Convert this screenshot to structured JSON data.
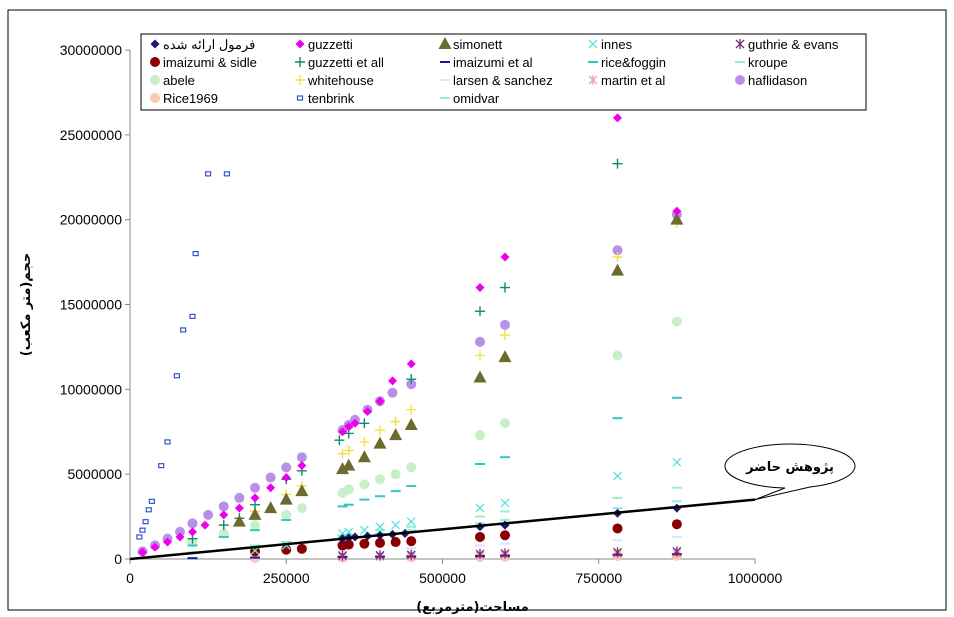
{
  "chart_data": {
    "type": "scatter",
    "title": "",
    "xlabel": "مساحت(مترمربع)",
    "ylabel": "حجم(متر مکعب)",
    "xlim": [
      0,
      1000000
    ],
    "ylim": [
      0,
      30000000
    ],
    "x_ticks": [
      "0",
      "250000",
      "500000",
      "750000",
      "1000000"
    ],
    "y_ticks": [
      "0",
      "5000000",
      "10000000",
      "15000000",
      "20000000",
      "25000000",
      "30000000"
    ],
    "grid": false,
    "legend_position": "top",
    "trend_line": {
      "name": "فرمول ارائه شده",
      "x": [
        0,
        1000000
      ],
      "y": [
        0,
        3500000
      ],
      "color": "#000000"
    },
    "callout": {
      "text": "پژوهش حاضر"
    },
    "series": [
      {
        "name": "فرمول ارائه شده",
        "marker": "diamond",
        "color": "#1a1a6e",
        "x": [
          340000,
          350000,
          360000,
          380000,
          400000,
          420000,
          440000,
          560000,
          600000,
          780000,
          875000
        ],
        "y": [
          1200000,
          1250000,
          1300000,
          1350000,
          1400000,
          1450000,
          1500000,
          1900000,
          2000000,
          2700000,
          3000000
        ]
      },
      {
        "name": "guzzetti",
        "marker": "diamond",
        "color": "#ee00ee",
        "x": [
          20000,
          40000,
          60000,
          80000,
          100000,
          120000,
          150000,
          175000,
          200000,
          225000,
          250000,
          275000,
          340000,
          350000,
          360000,
          380000,
          400000,
          420000,
          450000,
          560000,
          600000,
          780000,
          875000
        ],
        "y": [
          400000,
          700000,
          1000000,
          1300000,
          1600000,
          2000000,
          2600000,
          3000000,
          3600000,
          4200000,
          4800000,
          5500000,
          7500000,
          7800000,
          8000000,
          8700000,
          9300000,
          10500000,
          11500000,
          16000000,
          17800000,
          26000000,
          20500000
        ]
      },
      {
        "name": "simonett",
        "marker": "triangle",
        "color": "#6b6b2e",
        "x": [
          175000,
          200000,
          225000,
          250000,
          275000,
          340000,
          350000,
          375000,
          400000,
          425000,
          450000,
          560000,
          600000,
          780000,
          875000
        ],
        "y": [
          2200000,
          2600000,
          3000000,
          3500000,
          4000000,
          5300000,
          5500000,
          6000000,
          6800000,
          7300000,
          7900000,
          10700000,
          11900000,
          17000000,
          20000000
        ]
      },
      {
        "name": "innes",
        "marker": "x",
        "color": "#66e0e0",
        "x": [
          200000,
          250000,
          340000,
          350000,
          375000,
          400000,
          425000,
          450000,
          560000,
          600000,
          780000,
          875000
        ],
        "y": [
          500000,
          800000,
          1500000,
          1600000,
          1700000,
          1900000,
          2000000,
          2200000,
          3000000,
          3300000,
          4900000,
          5700000
        ]
      },
      {
        "name": "guthrie & evans",
        "marker": "star",
        "color": "#7a2a7a",
        "x": [
          340000,
          400000,
          450000,
          560000,
          600000,
          780000,
          875000
        ],
        "y": [
          200000,
          220000,
          250000,
          300000,
          330000,
          400000,
          450000
        ]
      },
      {
        "name": "imaizumi & sidle",
        "marker": "circle",
        "color": "#8a0000",
        "x": [
          200000,
          250000,
          275000,
          340000,
          350000,
          375000,
          400000,
          425000,
          450000,
          560000,
          600000,
          780000,
          875000
        ],
        "y": [
          450000,
          550000,
          600000,
          800000,
          850000,
          900000,
          950000,
          1000000,
          1050000,
          1300000,
          1400000,
          1800000,
          2050000
        ]
      },
      {
        "name": "guzzetti et all",
        "marker": "plus",
        "color": "#118a6e",
        "x": [
          100000,
          150000,
          175000,
          200000,
          250000,
          275000,
          335000,
          350000,
          375000,
          450000,
          560000,
          600000,
          780000
        ],
        "y": [
          1200000,
          2000000,
          2400000,
          3200000,
          4700000,
          5200000,
          7000000,
          7400000,
          8000000,
          10600000,
          14600000,
          16000000,
          23300000
        ]
      },
      {
        "name": "imaizumi et al",
        "marker": "dash",
        "color": "#1a1aa0",
        "x": [
          100000,
          200000,
          340000,
          400000,
          450000,
          560000,
          600000,
          780000,
          875000
        ],
        "y": [
          50000,
          80000,
          120000,
          140000,
          150000,
          180000,
          200000,
          250000,
          280000
        ]
      },
      {
        "name": "rice&foggin",
        "marker": "dash",
        "color": "#33c6c6",
        "x": [
          100000,
          150000,
          200000,
          250000,
          340000,
          350000,
          375000,
          400000,
          425000,
          450000,
          560000,
          600000,
          780000,
          875000
        ],
        "y": [
          800000,
          1300000,
          1700000,
          2300000,
          3100000,
          3200000,
          3500000,
          3700000,
          4000000,
          4300000,
          5600000,
          6000000,
          8300000,
          9500000
        ]
      },
      {
        "name": "kroupe",
        "marker": "dash",
        "color": "#99eedd",
        "x": [
          250000,
          340000,
          400000,
          450000,
          560000,
          600000,
          780000,
          875000
        ],
        "y": [
          1000000,
          1300000,
          1500000,
          1700000,
          2100000,
          2300000,
          3000000,
          3400000
        ]
      },
      {
        "name": "abele",
        "marker": "circle",
        "color": "#c8f0c8",
        "x": [
          100000,
          150000,
          200000,
          250000,
          275000,
          340000,
          350000,
          375000,
          400000,
          425000,
          450000,
          560000,
          600000,
          780000,
          875000
        ],
        "y": [
          1000000,
          1500000,
          2000000,
          2600000,
          3000000,
          3900000,
          4100000,
          4400000,
          4700000,
          5000000,
          5400000,
          7300000,
          8000000,
          12000000,
          14000000
        ]
      },
      {
        "name": "whitehouse",
        "marker": "plus",
        "color": "#f0e040",
        "x": [
          150000,
          200000,
          250000,
          275000,
          340000,
          350000,
          375000,
          400000,
          425000,
          450000,
          560000,
          600000,
          780000,
          875000
        ],
        "y": [
          2000000,
          2800000,
          3800000,
          4300000,
          6200000,
          6400000,
          6900000,
          7600000,
          8100000,
          8800000,
          12000000,
          13200000,
          17800000,
          19800000
        ]
      },
      {
        "name": "larsen & sanchez",
        "marker": "dash",
        "color": "#d8e6ff",
        "x": [
          200000,
          340000,
          450000,
          560000,
          600000,
          780000,
          875000
        ],
        "y": [
          300000,
          500000,
          650000,
          800000,
          900000,
          1100000,
          1300000
        ]
      },
      {
        "name": "martin et al",
        "marker": "star",
        "color": "#f0a0a0",
        "x": [
          340000,
          400000,
          450000,
          560000,
          600000,
          780000,
          875000
        ],
        "y": [
          120000,
          140000,
          160000,
          200000,
          220000,
          280000,
          320000
        ]
      },
      {
        "name": "haflidason",
        "marker": "circle",
        "color": "#b890e8",
        "x": [
          20000,
          40000,
          60000,
          80000,
          100000,
          125000,
          150000,
          175000,
          200000,
          225000,
          250000,
          275000,
          340000,
          350000,
          360000,
          380000,
          400000,
          420000,
          450000,
          560000,
          600000,
          780000,
          875000
        ],
        "y": [
          450000,
          800000,
          1200000,
          1600000,
          2100000,
          2600000,
          3100000,
          3600000,
          4200000,
          4800000,
          5400000,
          6000000,
          7600000,
          7900000,
          8200000,
          8800000,
          9300000,
          9800000,
          10300000,
          12800000,
          13800000,
          18200000,
          20300000
        ]
      },
      {
        "name": "Rice1969",
        "marker": "circle",
        "color": "#ffc8b4",
        "x": [
          200000,
          340000,
          450000,
          560000,
          600000,
          780000,
          875000
        ],
        "y": [
          50000,
          80000,
          100000,
          120000,
          130000,
          170000,
          190000
        ]
      },
      {
        "name": "tenbrink",
        "marker": "square",
        "color": "#3355cc",
        "x": [
          15000,
          20000,
          25000,
          30000,
          35000,
          50000,
          60000,
          75000,
          85000,
          100000,
          105000,
          125000,
          155000
        ],
        "y": [
          1300000,
          1700000,
          2200000,
          2900000,
          3400000,
          5500000,
          6900000,
          10800000,
          13500000,
          14300000,
          18000000,
          22700000,
          22700000
        ]
      },
      {
        "name": "omidvar",
        "marker": "dash",
        "color": "#99eecc",
        "x": [
          100000,
          200000,
          250000,
          340000,
          400000,
          450000,
          560000,
          600000,
          780000,
          875000
        ],
        "y": [
          400000,
          800000,
          1000000,
          1400000,
          1700000,
          1900000,
          2500000,
          2800000,
          3600000,
          4200000
        ]
      }
    ]
  }
}
